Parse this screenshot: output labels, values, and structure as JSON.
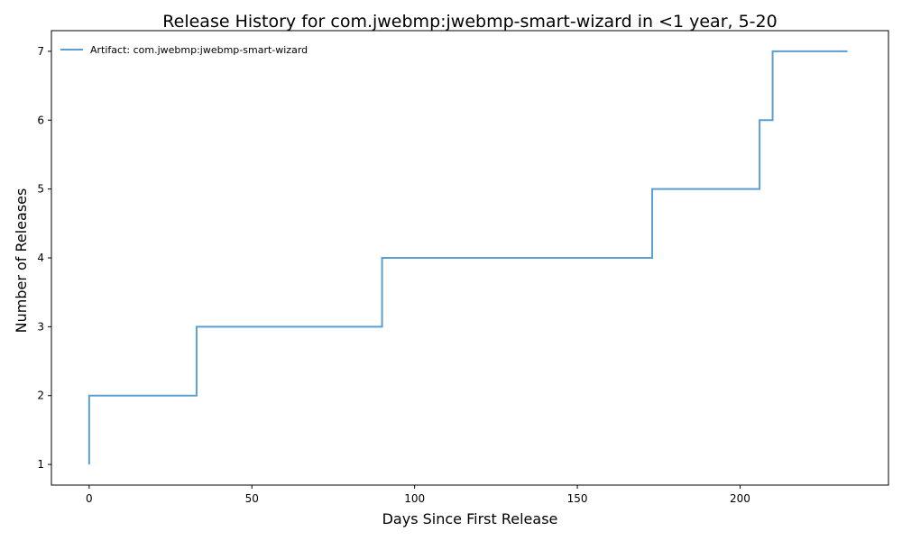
{
  "chart_data": {
    "type": "line",
    "title": "Release History for com.jwebmp:jwebmp-smart-wizard in <1 year, 5-20",
    "xlabel": "Days Since First Release",
    "ylabel": "Number of Releases",
    "xlim": [
      -11.6,
      245.6
    ],
    "ylim": [
      0.7,
      7.3
    ],
    "xticks": [
      0,
      50,
      100,
      150,
      200
    ],
    "yticks": [
      1,
      2,
      3,
      4,
      5,
      6,
      7
    ],
    "grid": false,
    "legend_position": "top-left",
    "line_style": "step-post",
    "series": [
      {
        "name": "Artifact: com.jwebmp:jwebmp-smart-wizard",
        "color": "#5b9fd0",
        "x": [
          0,
          0,
          33,
          90,
          173,
          206,
          210,
          233
        ],
        "y": [
          1,
          2,
          3,
          4,
          5,
          6,
          7,
          7
        ]
      }
    ]
  }
}
